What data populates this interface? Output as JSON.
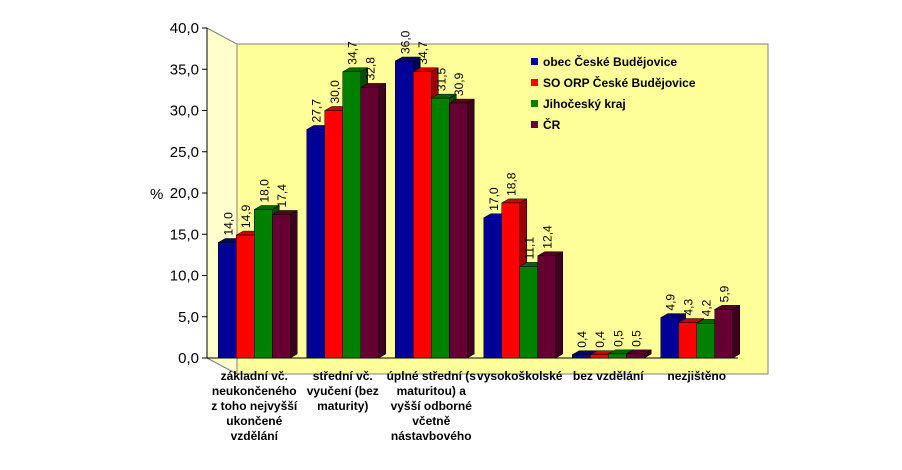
{
  "chart_data": {
    "type": "bar",
    "ylabel": "%",
    "ylim": [
      0,
      40
    ],
    "ytick_step": 5,
    "ytick_labels": [
      "0,0",
      "5,0",
      "10,0",
      "15,0",
      "20,0",
      "25,0",
      "30,0",
      "35,0",
      "40,0"
    ],
    "grid": false,
    "legend_position": "top-right-inside",
    "categories": [
      [
        "základní vč.",
        "neukončeného",
        "z toho nejvyšší",
        "ukončené",
        "vzdělání"
      ],
      [
        "střední vč.",
        "vyučení (bez",
        "maturity)"
      ],
      [
        "úplné střední (s",
        "maturitou) a",
        "vyšší odborné",
        "včetně",
        "nástavbového"
      ],
      [
        "vysokoškolské"
      ],
      [
        "bez vzdělání"
      ],
      [
        "nezjištěno"
      ]
    ],
    "series": [
      {
        "name": "obec České Budějovice",
        "color": "#000099",
        "values": [
          14.0,
          27.7,
          36.0,
          17.0,
          0.4,
          4.9
        ],
        "labels": [
          "14,0",
          "27,7",
          "36,0",
          "17,0",
          "0,4",
          "4,9"
        ]
      },
      {
        "name": "SO ORP České Budějovice",
        "color": "#ff0000",
        "values": [
          14.9,
          30.0,
          34.7,
          18.8,
          0.4,
          4.3
        ],
        "labels": [
          "14,9",
          "30,0",
          "34,7",
          "18,8",
          "0,4",
          "4,3"
        ]
      },
      {
        "name": "Jihočeský kraj",
        "color": "#008000",
        "values": [
          18.0,
          34.7,
          31.5,
          11.1,
          0.5,
          4.2
        ],
        "labels": [
          "18,0",
          "34,7",
          "31,5",
          "11,1",
          "0,5",
          "4,2"
        ]
      },
      {
        "name": "ČR",
        "color": "#660033",
        "values": [
          17.4,
          32.8,
          30.9,
          12.4,
          0.5,
          5.9
        ],
        "labels": [
          "17,4",
          "32,8",
          "30,9",
          "12,4",
          "0,5",
          "5,9"
        ]
      }
    ],
    "colors": {
      "wall": "#ffff99",
      "floor": "#c0c0c0",
      "side_wall": "#ffffcc"
    }
  }
}
